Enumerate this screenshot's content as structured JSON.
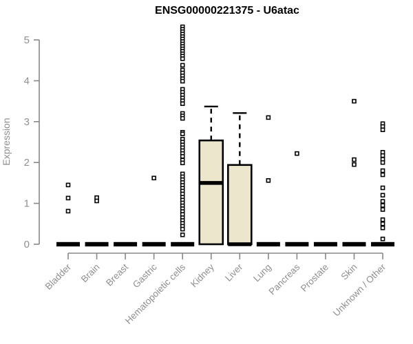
{
  "chart_data": {
    "type": "boxplot",
    "title": "ENSG00000221375 - U6atac",
    "ylabel": "Expression",
    "xlabel": "",
    "ylim": [
      0,
      5.4
    ],
    "yticks": [
      0,
      1,
      2,
      3,
      4,
      5
    ],
    "grid": false,
    "legend": "none",
    "outlier_marker": "open-square",
    "categories": [
      "Bladder",
      "Brain",
      "Breast",
      "Gastric",
      "Hematopoietic cells",
      "Kidney",
      "Liver",
      "Lung",
      "Pancreas",
      "Prostate",
      "Skin",
      "Unknown / Other"
    ],
    "boxes": [
      {
        "category": "Bladder",
        "q1": 0,
        "median": 0,
        "q3": 0,
        "whisker_low": 0,
        "whisker_high": 0,
        "outliers": [
          1.45,
          1.13,
          0.81
        ]
      },
      {
        "category": "Brain",
        "q1": 0,
        "median": 0,
        "q3": 0,
        "whisker_low": 0,
        "whisker_high": 0,
        "outliers": [
          1.14,
          1.06
        ]
      },
      {
        "category": "Breast",
        "q1": 0,
        "median": 0,
        "q3": 0,
        "whisker_low": 0,
        "whisker_high": 0,
        "outliers": []
      },
      {
        "category": "Gastric",
        "q1": 0,
        "median": 0,
        "q3": 0,
        "whisker_low": 0,
        "whisker_high": 0,
        "outliers": [
          1.62
        ]
      },
      {
        "category": "Hematopoietic cells",
        "q1": 0,
        "median": 0,
        "q3": 0,
        "whisker_low": 0,
        "whisker_high": 0,
        "outliers": [
          5.32,
          5.26,
          5.2,
          5.14,
          5.08,
          5.02,
          4.96,
          4.9,
          4.84,
          4.78,
          4.72,
          4.66,
          4.6,
          4.54,
          4.38,
          4.26,
          4.19,
          4.12,
          4.05,
          3.99,
          3.79,
          3.72,
          3.65,
          3.58,
          3.51,
          3.44,
          3.2,
          3.14,
          3.08,
          2.74,
          2.7,
          2.57,
          2.5,
          2.43,
          2.36,
          2.29,
          2.22,
          2.15,
          2.06,
          1.99,
          1.72,
          1.65,
          1.58,
          1.51,
          1.44,
          1.37,
          1.3,
          1.23,
          1.15,
          1.08,
          1.01,
          0.94,
          0.87,
          0.8,
          0.73,
          0.65,
          0.58,
          0.51,
          0.44,
          0.37,
          0.23
        ]
      },
      {
        "category": "Kidney",
        "q1": 0,
        "median": 1.5,
        "q3": 2.54,
        "whisker_low": 0,
        "whisker_high": 3.37,
        "outliers": []
      },
      {
        "category": "Liver",
        "q1": 0,
        "median": 0,
        "q3": 1.94,
        "whisker_low": 0,
        "whisker_high": 3.21,
        "outliers": []
      },
      {
        "category": "Lung",
        "q1": 0,
        "median": 0,
        "q3": 0,
        "whisker_low": 0,
        "whisker_high": 0,
        "outliers": [
          3.1,
          1.56
        ]
      },
      {
        "category": "Pancreas",
        "q1": 0,
        "median": 0,
        "q3": 0,
        "whisker_low": 0,
        "whisker_high": 0,
        "outliers": [
          2.22
        ]
      },
      {
        "category": "Prostate",
        "q1": 0,
        "median": 0,
        "q3": 0,
        "whisker_low": 0,
        "whisker_high": 0,
        "outliers": []
      },
      {
        "category": "Skin",
        "q1": 0,
        "median": 0,
        "q3": 0,
        "whisker_low": 0,
        "whisker_high": 0,
        "outliers": [
          3.5,
          2.07,
          1.95
        ]
      },
      {
        "category": "Unknown / Other",
        "q1": 0,
        "median": 0,
        "q3": 0,
        "whisker_low": 0,
        "whisker_high": 0,
        "outliers": [
          2.95,
          2.88,
          2.8,
          2.25,
          2.17,
          2.08,
          2.0,
          1.8,
          1.7,
          1.38,
          1.2,
          1.05,
          0.95,
          0.85,
          0.6,
          0.5,
          0.4,
          0.13
        ]
      }
    ],
    "colors": {
      "box_fill": "#ece6cc",
      "box_border": "#000000",
      "median": "#000000",
      "whisker": "#000000",
      "outlier": "#000000",
      "axis": "#878787",
      "tick_label": "#8f8f8f",
      "title": "#000000",
      "background": "#ffffff"
    }
  }
}
